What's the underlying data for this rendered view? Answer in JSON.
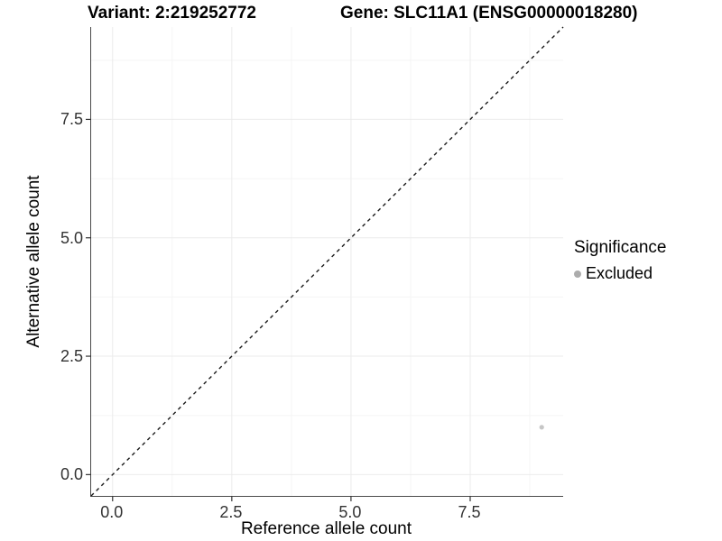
{
  "titles": {
    "variant": "Variant: 2:219252772",
    "gene": "Gene: SLC11A1 (ENSG00000018280)"
  },
  "chart_data": {
    "type": "scatter",
    "title_left": "Variant: 2:219252772",
    "title_right": "Gene: SLC11A1 (ENSG00000018280)",
    "xlabel": "Reference allele count",
    "ylabel": "Alternative allele count",
    "xlim": [
      -0.45,
      9.45
    ],
    "ylim": [
      -0.45,
      9.45
    ],
    "x_tick_values": [
      0,
      2.5,
      5,
      7.5
    ],
    "y_tick_values": [
      0,
      2.5,
      5,
      7.5
    ],
    "x_tick_labels": [
      "0.0",
      "2.5",
      "5.0",
      "7.5"
    ],
    "y_tick_labels": [
      "0.0",
      "2.5",
      "5.0",
      "7.5"
    ],
    "minor_tick_step": 1.25,
    "series": [
      {
        "name": "Excluded",
        "points": [
          {
            "x": 9,
            "y": 1
          }
        ],
        "color": "#c6c6c6",
        "point_radius": 2.6
      }
    ],
    "reference_line": {
      "equation": "y = x",
      "style": "dashed",
      "color": "#1a1a1a",
      "dash": "4,4",
      "width": 1.4
    },
    "legend": {
      "title": "Significance",
      "position": "right",
      "entries": [
        {
          "label": "Excluded",
          "color": "#acacac"
        }
      ]
    },
    "grid": {
      "major_color": "#ebebeb",
      "minor_color": "#f5f5f5"
    },
    "axis_color": "#4a4a4a",
    "tick_color": "#333333",
    "tick_length": 6
  }
}
